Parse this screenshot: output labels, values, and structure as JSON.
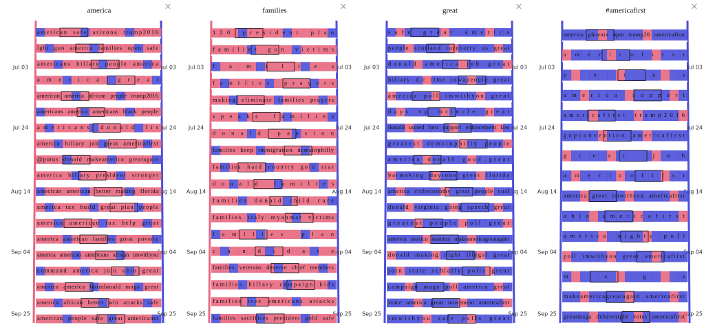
{
  "dates": [
    "Jul 03",
    "Jul 24",
    "Aug 14",
    "Sep 04",
    "Sep 25"
  ],
  "panels": [
    {
      "title": "america",
      "close": "×",
      "color": "#e8677f",
      "alt": "#4a4fd8",
      "rows": [
        "american safe arizona trump2016",
        "lgbt gun america families open safe",
        "americans hillary people america",
        "america great",
        "american america african people trump2016",
        "americans america americans black people",
        "americans donald lis",
        "america hillary job great americafirst",
        "@potus donald makeamerica greatagain",
        "america hillary president stronger",
        "american american better making florida",
        "america tax build great plan people",
        "america american tax help great",
        "america american families great poverty",
        "america american americans african imwithyou",
        "command america join ohio great",
        "america america borndonald maga great",
        "america african better win attacks safe",
        "american people safe great americanst"
      ]
    },
    {
      "title": "families",
      "close": "×",
      "color": "#e8677f",
      "alt": "#4a4fd8",
      "rows": [
        "120 president plan",
        "families gun victims",
        "families",
        "families prayers",
        "making eliminate families prayers",
        "speaks families",
        "donald passion",
        "families keep immigration demsinphilly",
        "families hard country gold star",
        "donald families",
        "families donald child care",
        "families italy myanmar victims",
        "families plan",
        "candidate",
        "families veterans deserve chief members",
        "families hillary campaign kids",
        "families tree americans attacks",
        "families sacrifices president gold safe"
      ]
    },
    {
      "title": "great",
      "close": "×",
      "color": "#4a4fd8",
      "alt": "#e8677f",
      "rows": [
        "safe great america",
        "people scotland turnberry us great",
        "donald america job great",
        "hillary d.c time iowapeople great",
        "america poll imwithyou great",
        "days vp mcincle great",
        "donald united best support enforcement law",
        "greatest demsinphilly people",
        "america donald good great",
        "barmaking daytona great florida",
        "america richeconomy great people coal",
        "donald virginia going speech great",
        "greatest people poll great",
        "america mexico stamina makeamericagreatagain",
        "donald making night illegal great",
        "join state schlafly polls great",
        "campaign maga poll america great",
        "voice america great movement americafirst",
        "imwithyou safe polls great"
      ]
    },
    {
      "title": "#americafirst",
      "close": "×",
      "color": "#4a4fd8",
      "alt": "#e8677f",
      "rows": [
        "america phoenix 4pm trump20 americafirst",
        "americafirst",
        "potus",
        "america support",
        "americafirst trump2016",
        "gopconvention americafirst",
        "great job",
        "americafirst",
        "america great imwithyou americafirst",
        "ohio americafirst",
        "america nights poll",
        "poll imwithyou great americafirst",
        "maga",
        "makeamericagreatagain americafirst",
        "greatmaga debatenight votes americafirst"
      ]
    }
  ]
}
